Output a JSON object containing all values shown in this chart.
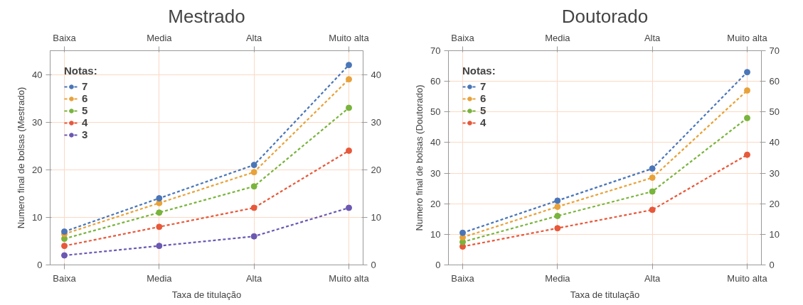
{
  "chart_data": [
    {
      "type": "line",
      "title": "Mestrado",
      "xlabel": "Taxa de titulação",
      "ylabel": "Numero final de bolsas (Mestrado)",
      "legend_title": "Notas:",
      "categories": [
        "Baixa",
        "Media",
        "Alta",
        "Muito alta"
      ],
      "ylim": [
        0,
        45
      ],
      "yticks": [
        0,
        10,
        20,
        30,
        40
      ],
      "y2lim": [
        0,
        45
      ],
      "y2ticks": [
        0,
        10,
        20,
        30,
        40
      ],
      "grid": true,
      "legend": "top left",
      "marker": "circle",
      "line_style": "dashed",
      "series": [
        {
          "name": "7",
          "color": "#4a76b8",
          "values": [
            7,
            14,
            21,
            42
          ]
        },
        {
          "name": "6",
          "color": "#e8a23a",
          "values": [
            6.5,
            13,
            19.5,
            39
          ]
        },
        {
          "name": "5",
          "color": "#79b43c",
          "values": [
            5.5,
            11,
            16.5,
            33
          ]
        },
        {
          "name": "4",
          "color": "#e8583a",
          "values": [
            4,
            8,
            12,
            24
          ]
        },
        {
          "name": "3",
          "color": "#6b58b2",
          "values": [
            2,
            4,
            6,
            12
          ]
        }
      ]
    },
    {
      "type": "line",
      "title": "Doutorado",
      "xlabel": "Taxa de titulação",
      "ylabel": "Numero final de bolsas (Doutorado)",
      "legend_title": "Notas:",
      "categories": [
        "Baixa",
        "Media",
        "Alta",
        "Muito alta"
      ],
      "ylim": [
        0,
        70
      ],
      "yticks": [
        0,
        10,
        20,
        30,
        40,
        50,
        60,
        70
      ],
      "y2lim": [
        0,
        70
      ],
      "y2ticks": [
        0,
        10,
        20,
        30,
        40,
        50,
        60,
        70
      ],
      "grid": true,
      "legend": "top left",
      "marker": "circle",
      "line_style": "dashed",
      "series": [
        {
          "name": "7",
          "color": "#4a76b8",
          "values": [
            10.5,
            21,
            31.5,
            63
          ]
        },
        {
          "name": "6",
          "color": "#e8a23a",
          "values": [
            9,
            19,
            28.5,
            57
          ]
        },
        {
          "name": "5",
          "color": "#79b43c",
          "values": [
            7.5,
            16,
            24,
            48
          ]
        },
        {
          "name": "4",
          "color": "#e8583a",
          "values": [
            6,
            12,
            18,
            36
          ]
        }
      ]
    }
  ]
}
